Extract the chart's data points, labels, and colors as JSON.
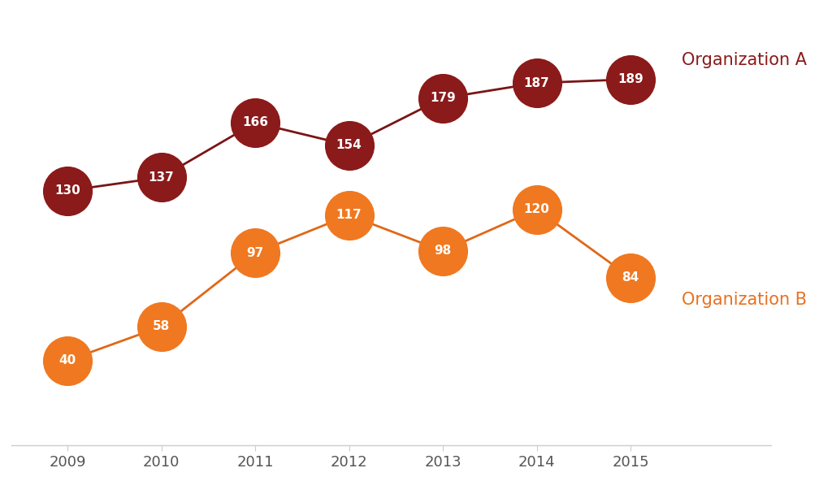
{
  "years": [
    2009,
    2010,
    2011,
    2012,
    2013,
    2014,
    2015
  ],
  "org_a_values": [
    130,
    137,
    166,
    154,
    179,
    187,
    189
  ],
  "org_b_values": [
    40,
    58,
    97,
    117,
    98,
    120,
    84
  ],
  "org_a_color": "#8B1A1A",
  "org_b_color": "#F07820",
  "org_a_line_color": "#7A1515",
  "org_b_line_color": "#E06818",
  "org_a_label": "Organization A",
  "org_b_label": "Organization B",
  "background_color": "#FFFFFF",
  "grid_color": "#CCCCCC",
  "label_text_color": "#FFFFFF",
  "legend_color_a": "#8B1A1A",
  "legend_color_b": "#E87020",
  "font_size_label": 11,
  "font_size_legend": 15,
  "font_size_ticks": 13,
  "ylim": [
    -5,
    225
  ],
  "xlim": [
    2008.4,
    2016.5
  ]
}
